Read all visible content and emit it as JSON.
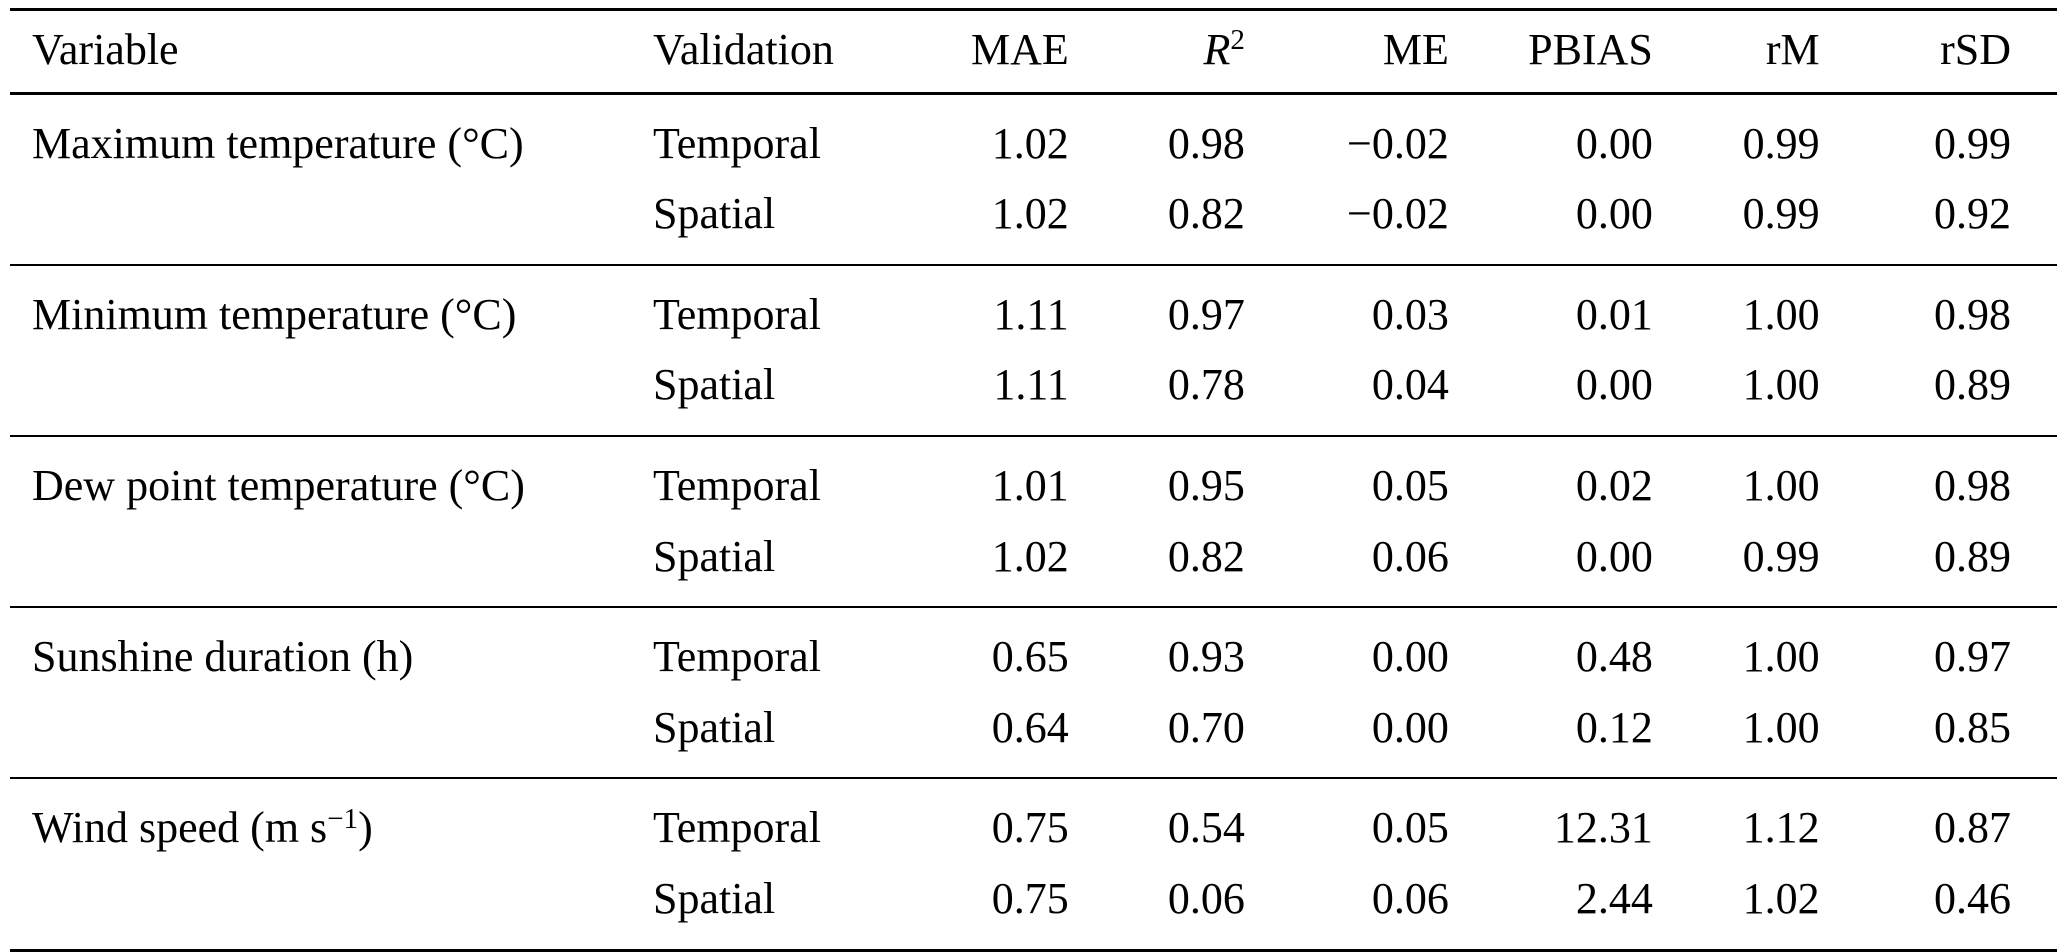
{
  "page": {
    "background_color": "#ffffff",
    "text_color": "#000000",
    "rule_color": "#000000"
  },
  "table": {
    "columns": [
      {
        "key": "variable",
        "align": "left",
        "segments": [
          {
            "t": "Variable"
          }
        ]
      },
      {
        "key": "validation",
        "align": "left",
        "segments": [
          {
            "t": "Validation"
          }
        ]
      },
      {
        "key": "mae",
        "align": "right",
        "segments": [
          {
            "t": "MAE"
          }
        ]
      },
      {
        "key": "r2",
        "align": "right",
        "segments": [
          {
            "t": "R",
            "italic": true
          },
          {
            "t": "2",
            "sup": true
          }
        ]
      },
      {
        "key": "me",
        "align": "right",
        "segments": [
          {
            "t": "ME"
          }
        ]
      },
      {
        "key": "pbias",
        "align": "right",
        "segments": [
          {
            "t": "PBIAS"
          }
        ]
      },
      {
        "key": "rm",
        "align": "right",
        "segments": [
          {
            "t": "rM"
          }
        ]
      },
      {
        "key": "rsd",
        "align": "right",
        "segments": [
          {
            "t": "rSD"
          }
        ]
      }
    ],
    "groups": [
      {
        "variable_segments": [
          {
            "t": "Maximum temperature (°C)"
          }
        ],
        "rows": [
          {
            "validation": "Temporal",
            "values": [
              "1.02",
              "0.98",
              "−0.02",
              "0.00",
              "0.99",
              "0.99"
            ]
          },
          {
            "validation": "Spatial",
            "values": [
              "1.02",
              "0.82",
              "−0.02",
              "0.00",
              "0.99",
              "0.92"
            ]
          }
        ]
      },
      {
        "variable_segments": [
          {
            "t": "Minimum temperature (°C)"
          }
        ],
        "rows": [
          {
            "validation": "Temporal",
            "values": [
              "1.11",
              "0.97",
              "0.03",
              "0.01",
              "1.00",
              "0.98"
            ]
          },
          {
            "validation": "Spatial",
            "values": [
              "1.11",
              "0.78",
              "0.04",
              "0.00",
              "1.00",
              "0.89"
            ]
          }
        ]
      },
      {
        "variable_segments": [
          {
            "t": "Dew point temperature (°C)"
          }
        ],
        "rows": [
          {
            "validation": "Temporal",
            "values": [
              "1.01",
              "0.95",
              "0.05",
              "0.02",
              "1.00",
              "0.98"
            ]
          },
          {
            "validation": "Spatial",
            "values": [
              "1.02",
              "0.82",
              "0.06",
              "0.00",
              "0.99",
              "0.89"
            ]
          }
        ]
      },
      {
        "variable_segments": [
          {
            "t": "Sunshine duration (h)"
          }
        ],
        "rows": [
          {
            "validation": "Temporal",
            "values": [
              "0.65",
              "0.93",
              "0.00",
              "0.48",
              "1.00",
              "0.97"
            ]
          },
          {
            "validation": "Spatial",
            "values": [
              "0.64",
              "0.70",
              "0.00",
              "0.12",
              "1.00",
              "0.85"
            ]
          }
        ]
      },
      {
        "variable_segments": [
          {
            "t": "Wind speed (m s"
          },
          {
            "t": "−1",
            "sup": true
          },
          {
            "t": ")"
          }
        ],
        "rows": [
          {
            "validation": "Temporal",
            "values": [
              "0.75",
              "0.54",
              "0.05",
              "12.31",
              "1.12",
              "0.87"
            ]
          },
          {
            "validation": "Spatial",
            "values": [
              "0.75",
              "0.06",
              "0.06",
              "2.44",
              "1.02",
              "0.46"
            ]
          }
        ]
      }
    ]
  }
}
